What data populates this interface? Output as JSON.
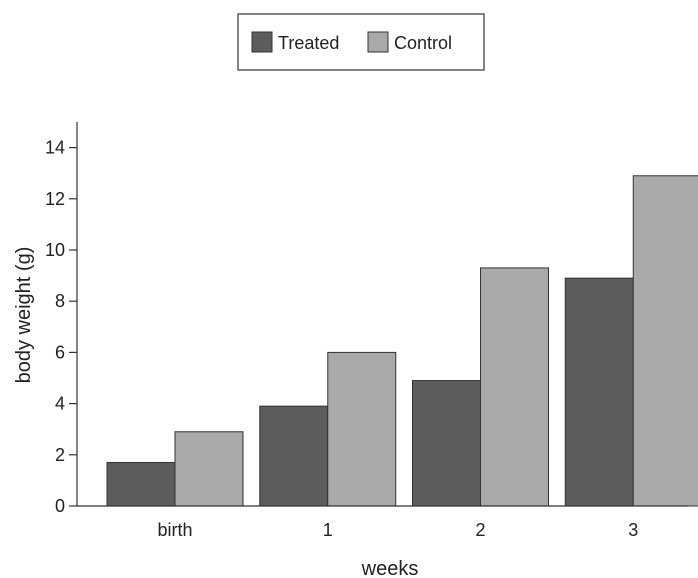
{
  "chart_data": {
    "type": "bar",
    "categories": [
      "birth",
      "1",
      "2",
      "3"
    ],
    "series": [
      {
        "name": "Treated",
        "values": [
          1.7,
          3.9,
          4.9,
          8.9
        ]
      },
      {
        "name": "Control",
        "values": [
          2.9,
          6.0,
          9.3,
          12.9
        ]
      }
    ],
    "xlabel": "weeks",
    "ylabel": "body weight (g)",
    "ylim": [
      0,
      15
    ],
    "yticks": [
      0,
      2,
      4,
      6,
      8,
      10,
      12,
      14
    ],
    "legend_position": "top-center",
    "grid": false,
    "colors": {
      "Treated": "#5c5c5c",
      "Control": "#a9a9a9"
    }
  }
}
